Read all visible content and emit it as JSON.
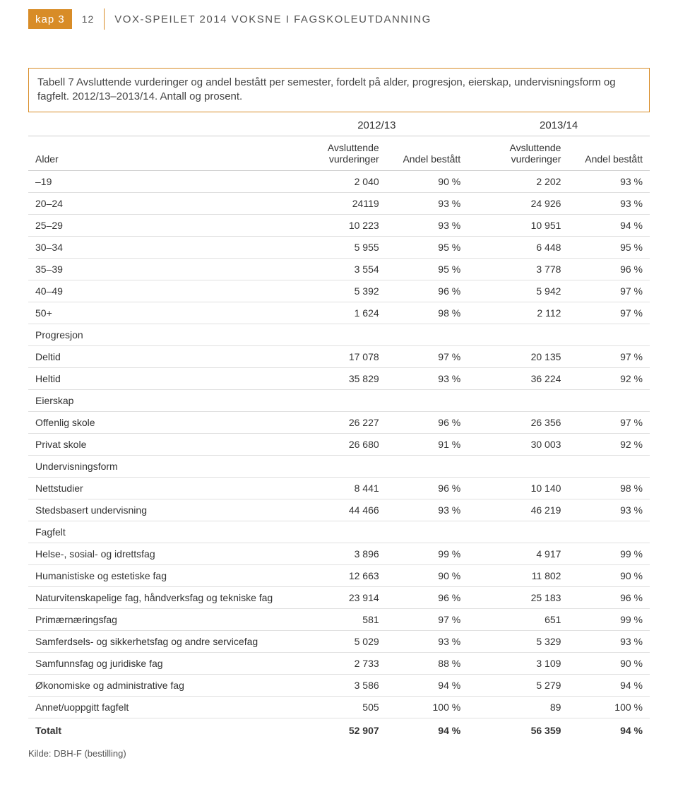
{
  "header": {
    "kap_label": "kap 3",
    "page_number": "12",
    "running_title": "VOX-SPEILET 2014 VOKSNE I FAGSKOLEUTDANNING"
  },
  "caption": "Tabell 7 Avsluttende vurderinger og andel bestått per semester, fordelt på alder, progresjon, eierskap, undervisningsform og fagfelt. 2012/13–2013/14. Antall og prosent.",
  "table": {
    "year_headers": [
      "2012/13",
      "2013/14"
    ],
    "sub_headers": [
      "Avsluttende vurderinger",
      "Andel bestått",
      "Avsluttende vurderinger",
      "Andel bestått"
    ],
    "row_label_header": "Alder",
    "rows": [
      {
        "label": "–19",
        "cells": [
          "2 040",
          "90 %",
          "2 202",
          "93 %"
        ]
      },
      {
        "label": "20–24",
        "cells": [
          "24119",
          "93 %",
          "24 926",
          "93 %"
        ]
      },
      {
        "label": "25–29",
        "cells": [
          "10 223",
          "93 %",
          "10 951",
          "94 %"
        ]
      },
      {
        "label": "30–34",
        "cells": [
          "5 955",
          "95 %",
          "6 448",
          "95 %"
        ]
      },
      {
        "label": "35–39",
        "cells": [
          "3 554",
          "95 %",
          "3 778",
          "96 %"
        ]
      },
      {
        "label": "40–49",
        "cells": [
          "5 392",
          "96 %",
          "5 942",
          "97 %"
        ]
      },
      {
        "label": "50+",
        "cells": [
          "1 624",
          "98 %",
          "2 112",
          "97 %"
        ]
      },
      {
        "label": "Progresjon",
        "section": true
      },
      {
        "label": "Deltid",
        "cells": [
          "17 078",
          "97 %",
          "20 135",
          "97 %"
        ]
      },
      {
        "label": "Heltid",
        "cells": [
          "35 829",
          "93 %",
          "36 224",
          "92 %"
        ]
      },
      {
        "label": "Eierskap",
        "section": true
      },
      {
        "label": "Offenlig skole",
        "cells": [
          "26 227",
          "96 %",
          "26 356",
          "97 %"
        ]
      },
      {
        "label": "Privat skole",
        "cells": [
          "26 680",
          "91 %",
          "30 003",
          "92 %"
        ]
      },
      {
        "label": "Undervisningsform",
        "section": true
      },
      {
        "label": "Nettstudier",
        "cells": [
          "8 441",
          "96 %",
          "10 140",
          "98 %"
        ]
      },
      {
        "label": "Stedsbasert undervisning",
        "cells": [
          "44 466",
          "93 %",
          "46 219",
          "93 %"
        ]
      },
      {
        "label": "Fagfelt",
        "section": true
      },
      {
        "label": "Helse-, sosial- og idrettsfag",
        "cells": [
          "3 896",
          "99 %",
          "4 917",
          "99 %"
        ]
      },
      {
        "label": "Humanistiske og estetiske fag",
        "cells": [
          "12 663",
          "90 %",
          "11 802",
          "90 %"
        ]
      },
      {
        "label": "Naturvitenskapelige fag, håndverksfag og tekniske fag",
        "cells": [
          "23 914",
          "96 %",
          "25 183",
          "96 %"
        ]
      },
      {
        "label": "Primærnæringsfag",
        "cells": [
          "581",
          "97 %",
          "651",
          "99 %"
        ]
      },
      {
        "label": "Samferdsels- og sikkerhetsfag og andre servicefag",
        "cells": [
          "5 029",
          "93 %",
          "5 329",
          "93 %"
        ]
      },
      {
        "label": "Samfunnsfag og juridiske fag",
        "cells": [
          "2 733",
          "88 %",
          "3 109",
          "90 %"
        ]
      },
      {
        "label": "Økonomiske og administrative fag",
        "cells": [
          "3 586",
          "94 %",
          "5 279",
          "94 %"
        ]
      },
      {
        "label": "Annet/uoppgitt fagfelt",
        "cells": [
          "505",
          "100 %",
          "89",
          "100 %"
        ]
      },
      {
        "label": "Totalt",
        "cells": [
          "52 907",
          "94 %",
          "56 359",
          "94 %"
        ],
        "total": true
      }
    ]
  },
  "source": "Kilde: DBH-F (bestilling)",
  "colors": {
    "accent": "#d88c27",
    "text": "#333333",
    "grid": "#e0e0e0"
  }
}
